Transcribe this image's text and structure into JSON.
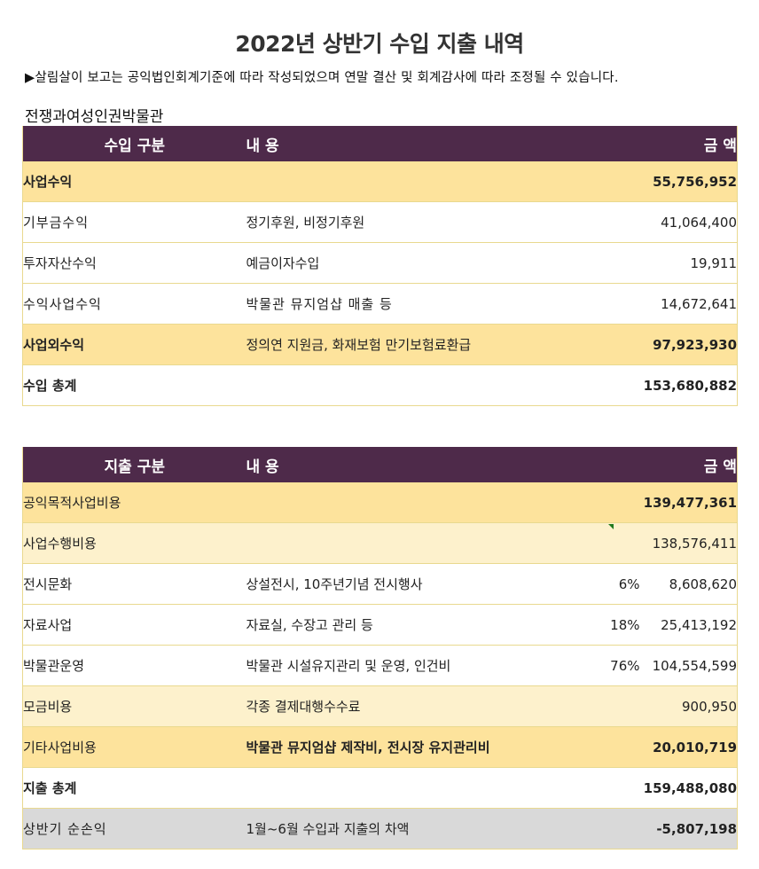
{
  "title": "2022년 상반기 수입 지출 내역",
  "note": "▶살림살이 보고는 공익법인회계기준에 따라 작성되었으며 연말 결산 및 회계감사에 따라 조정될 수 있습니다.",
  "org": "전쟁과여성인권박물관",
  "income": {
    "headers": {
      "category": "수입 구분",
      "content": "내 용",
      "amount": "금 액"
    },
    "rows": [
      {
        "label": "사업수익",
        "desc": "",
        "amount": "55,756,952"
      },
      {
        "label": "기부금수익",
        "desc": "정기후원, 비정기후원",
        "amount": "41,064,400"
      },
      {
        "label": "투자자산수익",
        "desc": "예금이자수입",
        "amount": "19,911"
      },
      {
        "label": "수익사업수익",
        "desc": "박물관 뮤지엄샵 매출 등",
        "amount": "14,672,641"
      },
      {
        "label": "사업외수익",
        "desc": "정의연 지원금, 화재보험 만기보험료환급",
        "amount": "97,923,930"
      },
      {
        "label": "수입 총계",
        "desc": "",
        "amount": "153,680,882"
      }
    ]
  },
  "expense": {
    "headers": {
      "category": "지출 구분",
      "content": "내 용",
      "amount": "금 액"
    },
    "rows": [
      {
        "label": "공익목적사업비용",
        "desc": "",
        "pct": "",
        "amount": "139,477,361"
      },
      {
        "label": "사업수행비용",
        "desc": "",
        "pct": "",
        "amount": "138,576,411"
      },
      {
        "label": "전시문화",
        "desc": "상설전시, 10주년기념 전시행사",
        "pct": "6%",
        "amount": "8,608,620"
      },
      {
        "label": "자료사업",
        "desc": "자료실, 수장고 관리 등",
        "pct": "18%",
        "amount": "25,413,192"
      },
      {
        "label": "박물관운영",
        "desc": "박물관 시설유지관리 및 운영, 인건비",
        "pct": "76%",
        "amount": "104,554,599"
      },
      {
        "label": "모금비용",
        "desc": "각종 결제대행수수료",
        "pct": "",
        "amount": "900,950"
      },
      {
        "label": "기타사업비용",
        "desc": "박물관 뮤지엄샵 제작비, 전시장 유지관리비",
        "pct": "",
        "amount": "20,010,719"
      },
      {
        "label": "지출 총계",
        "desc": "",
        "pct": "",
        "amount": "159,488,080"
      },
      {
        "label": "상반기 순손익",
        "desc": "1월~6월 수입과 지출의 차액",
        "pct": "",
        "amount": "-5,807,198"
      }
    ]
  }
}
